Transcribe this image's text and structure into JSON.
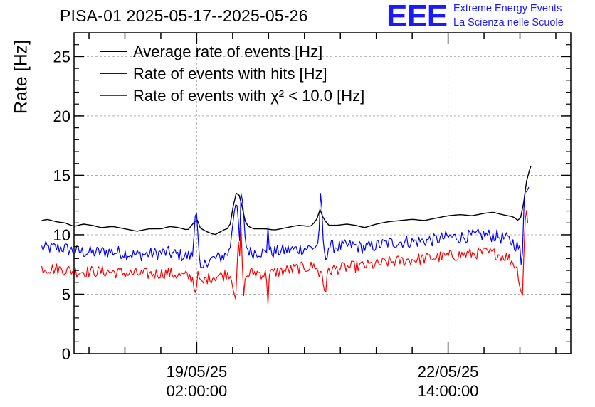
{
  "title": "PISA-01 2025-05-17--2025-05-26",
  "logo": {
    "mark": "EEE",
    "line1": "Extreme Energy Events",
    "line2": "La Scienza nelle Scuole"
  },
  "colors": {
    "black_series": "#000000",
    "blue_series": "#0000ff",
    "red_series": "#ff0000",
    "logo": "#1a1aff",
    "grid": "#b0b0b0"
  },
  "chart_data": {
    "type": "line",
    "title": "PISA-01 2025-05-17--2025-05-26",
    "ylabel": "Rate [Hz]",
    "xlabel": "",
    "ylim": [
      0,
      27
    ],
    "yticks": [
      "0",
      "5",
      "10",
      "15",
      "20",
      "25"
    ],
    "xaxis": "time",
    "xlim_hours": [
      -41.0,
      125.0
    ],
    "x_reference": "19/05/25 02:00:00",
    "xtick_labels": [
      {
        "hours": 0,
        "date": "19/05/25",
        "time": "02:00:00"
      },
      {
        "hours": 84,
        "date": "22/05/25",
        "time": "14:00:00"
      }
    ],
    "grid": true,
    "legend_position": "top-left",
    "series": [
      {
        "name": "Average rate of events [Hz]",
        "color": "#000000",
        "points": [
          [
            -51.8,
            11.2
          ],
          [
            -50,
            11.3
          ],
          [
            -47,
            11.1
          ],
          [
            -44,
            11.0
          ],
          [
            -41,
            10.7
          ],
          [
            -38,
            10.9
          ],
          [
            -35,
            10.8
          ],
          [
            -32,
            10.6
          ],
          [
            -28,
            10.7
          ],
          [
            -24,
            10.5
          ],
          [
            -20,
            10.3
          ],
          [
            -16,
            10.5
          ],
          [
            -12,
            10.5
          ],
          [
            -9,
            10.7
          ],
          [
            -6,
            10.6
          ],
          [
            -3,
            10.4
          ],
          [
            -1,
            11.0
          ],
          [
            0,
            11.4
          ],
          [
            1,
            10.6
          ],
          [
            3,
            10.3
          ],
          [
            6,
            10.0
          ],
          [
            9,
            10.4
          ],
          [
            11,
            10.6
          ],
          [
            12,
            12.2
          ],
          [
            13.2,
            13.5
          ],
          [
            14.3,
            13.3
          ],
          [
            15.5,
            12.0
          ],
          [
            16.5,
            10.8
          ],
          [
            19,
            10.5
          ],
          [
            23,
            10.5
          ],
          [
            26,
            10.4
          ],
          [
            30,
            10.6
          ],
          [
            34,
            10.8
          ],
          [
            38,
            10.7
          ],
          [
            40,
            11.2
          ],
          [
            41.3,
            12.2
          ],
          [
            42.3,
            11.4
          ],
          [
            44,
            10.8
          ],
          [
            47,
            10.8
          ],
          [
            50,
            10.9
          ],
          [
            53,
            10.8
          ],
          [
            56,
            10.6
          ],
          [
            60,
            10.9
          ],
          [
            64,
            11.1
          ],
          [
            68,
            11.2
          ],
          [
            72,
            11.3
          ],
          [
            76,
            11.2
          ],
          [
            80,
            11.4
          ],
          [
            84,
            11.6
          ],
          [
            88,
            11.7
          ],
          [
            92,
            11.6
          ],
          [
            96,
            11.8
          ],
          [
            99,
            11.9
          ],
          [
            102,
            11.7
          ],
          [
            104,
            11.6
          ],
          [
            106,
            11.5
          ],
          [
            107,
            11.2
          ],
          [
            108,
            11.3
          ],
          [
            108.8,
            11.8
          ],
          [
            109.5,
            13.3
          ],
          [
            110.2,
            14.5
          ],
          [
            111,
            15.3
          ],
          [
            111.7,
            15.8
          ]
        ]
      },
      {
        "name": "Rate of events with hits [Hz]",
        "color": "#0000ff",
        "points": [
          [
            -51.8,
            8.9
          ],
          [
            -45,
            8.9
          ],
          [
            -40,
            8.6
          ],
          [
            -35,
            8.5
          ],
          [
            -30,
            8.6
          ],
          [
            -25,
            8.5
          ],
          [
            -20,
            8.3
          ],
          [
            -15,
            8.4
          ],
          [
            -10,
            8.5
          ],
          [
            -6,
            8.3
          ],
          [
            -3,
            8.2
          ],
          [
            -1.3,
            8.3
          ],
          [
            -0.8,
            10.5
          ],
          [
            -0.3,
            13.2
          ],
          [
            0.2,
            10.8
          ],
          [
            0.7,
            8.2
          ],
          [
            1.5,
            6.5
          ],
          [
            3,
            7.8
          ],
          [
            6,
            8.0
          ],
          [
            9,
            8.2
          ],
          [
            11,
            8.6
          ],
          [
            12.2,
            11.5
          ],
          [
            13.2,
            13.3
          ],
          [
            13.8,
            11.2
          ],
          [
            14.3,
            8.8
          ],
          [
            14.8,
            13.5
          ],
          [
            15.5,
            12.0
          ],
          [
            16.5,
            9.0
          ],
          [
            18,
            8.5
          ],
          [
            21,
            8.6
          ],
          [
            23.3,
            8.4
          ],
          [
            23.8,
            11.0
          ],
          [
            24.3,
            8.5
          ],
          [
            27,
            8.6
          ],
          [
            30,
            8.7
          ],
          [
            34,
            8.8
          ],
          [
            38,
            8.9
          ],
          [
            40,
            9.0
          ],
          [
            41.1,
            10.2
          ],
          [
            41.5,
            14.7
          ],
          [
            42,
            10.5
          ],
          [
            42.8,
            7.8
          ],
          [
            44,
            9.0
          ],
          [
            48,
            9.0
          ],
          [
            52,
            9.1
          ],
          [
            56,
            8.9
          ],
          [
            60,
            9.1
          ],
          [
            64,
            9.3
          ],
          [
            68,
            9.4
          ],
          [
            72,
            9.4
          ],
          [
            76,
            9.5
          ],
          [
            80,
            9.6
          ],
          [
            84,
            9.8
          ],
          [
            88,
            9.8
          ],
          [
            92,
            9.9
          ],
          [
            96,
            10.0
          ],
          [
            100,
            9.9
          ],
          [
            104,
            9.6
          ],
          [
            106,
            9.3
          ],
          [
            107.2,
            9.0
          ],
          [
            108,
            8.7
          ],
          [
            108.5,
            7.0
          ],
          [
            109,
            9.5
          ],
          [
            109.5,
            14.5
          ],
          [
            110.2,
            13.5
          ],
          [
            111,
            14.0
          ]
        ]
      },
      {
        "name": "Rate of events with χ² < 10.0 [Hz]",
        "color": "#ff0000",
        "points": [
          [
            -51.8,
            7.2
          ],
          [
            -45,
            7.1
          ],
          [
            -40,
            6.9
          ],
          [
            -35,
            6.9
          ],
          [
            -30,
            6.9
          ],
          [
            -25,
            6.8
          ],
          [
            -20,
            6.7
          ],
          [
            -15,
            6.7
          ],
          [
            -10,
            6.8
          ],
          [
            -6,
            6.6
          ],
          [
            -3,
            6.5
          ],
          [
            -1.2,
            6.3
          ],
          [
            -0.6,
            5.0
          ],
          [
            0,
            6.2
          ],
          [
            0.6,
            6.6
          ],
          [
            1.5,
            5.7
          ],
          [
            3,
            6.3
          ],
          [
            6,
            6.5
          ],
          [
            9,
            6.6
          ],
          [
            11,
            6.8
          ],
          [
            12.2,
            5.8
          ],
          [
            13.2,
            4.5
          ],
          [
            13.8,
            9.8
          ],
          [
            14.3,
            7.5
          ],
          [
            14.8,
            10.8
          ],
          [
            15.5,
            5.0
          ],
          [
            16.5,
            6.5
          ],
          [
            18,
            6.8
          ],
          [
            21,
            6.8
          ],
          [
            23.3,
            6.6
          ],
          [
            23.8,
            4.5
          ],
          [
            24.3,
            6.7
          ],
          [
            27,
            6.9
          ],
          [
            30,
            7.0
          ],
          [
            34,
            7.2
          ],
          [
            38,
            7.3
          ],
          [
            40,
            7.4
          ],
          [
            41.2,
            6.0
          ],
          [
            41.5,
            8.0
          ],
          [
            42,
            6.2
          ],
          [
            43,
            5.2
          ],
          [
            44,
            7.0
          ],
          [
            48,
            7.2
          ],
          [
            52,
            7.3
          ],
          [
            56,
            7.4
          ],
          [
            60,
            7.5
          ],
          [
            64,
            7.7
          ],
          [
            68,
            7.8
          ],
          [
            72,
            7.9
          ],
          [
            76,
            8.0
          ],
          [
            80,
            8.1
          ],
          [
            84,
            8.2
          ],
          [
            88,
            8.3
          ],
          [
            92,
            8.4
          ],
          [
            96,
            8.5
          ],
          [
            100,
            8.4
          ],
          [
            104,
            8.1
          ],
          [
            106,
            7.6
          ],
          [
            107.3,
            7.0
          ],
          [
            108.3,
            5.3
          ],
          [
            108.8,
            4.8
          ],
          [
            109.4,
            9.0
          ],
          [
            110,
            12.5
          ],
          [
            110.6,
            11.0
          ]
        ]
      }
    ],
    "noise_amplitude_hz": [
      0,
      0.55,
      0.5
    ]
  }
}
